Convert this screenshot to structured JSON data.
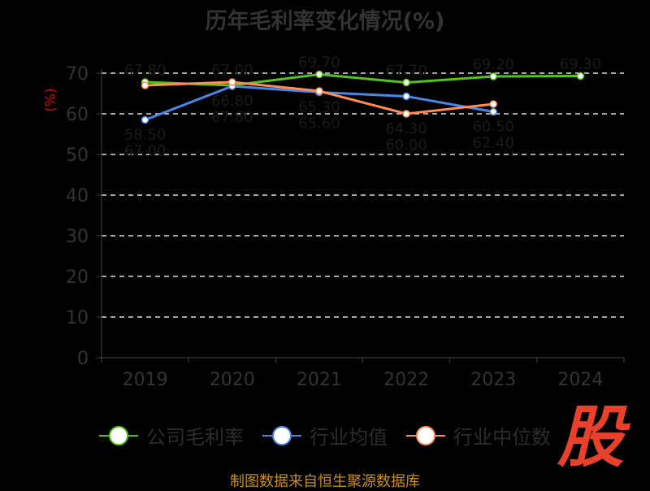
{
  "chart_data": {
    "type": "line",
    "title": "历年毛利率变化情况(%)",
    "ylabel": "(%)",
    "xlabel": "",
    "categories": [
      "2019",
      "2020",
      "2021",
      "2022",
      "2023",
      "2024"
    ],
    "ylim": [
      0,
      70
    ],
    "yticks": [
      0,
      10,
      20,
      30,
      40,
      50,
      60,
      70
    ],
    "grid": true,
    "legend_position": "bottom",
    "series": [
      {
        "name": "公司毛利率",
        "color": "#52c41a",
        "values": [
          67.8,
          67.0,
          69.7,
          67.7,
          69.2,
          69.3
        ]
      },
      {
        "name": "行业均值",
        "color": "#4a86e8",
        "values": [
          58.5,
          66.8,
          65.3,
          64.3,
          60.5,
          null
        ]
      },
      {
        "name": "行业中位数",
        "color": "#ff8c55",
        "values": [
          67.0,
          67.8,
          65.6,
          60.0,
          62.4,
          null
        ]
      }
    ]
  },
  "source": "制图数据来自恒生聚源数据库",
  "logo": "股"
}
